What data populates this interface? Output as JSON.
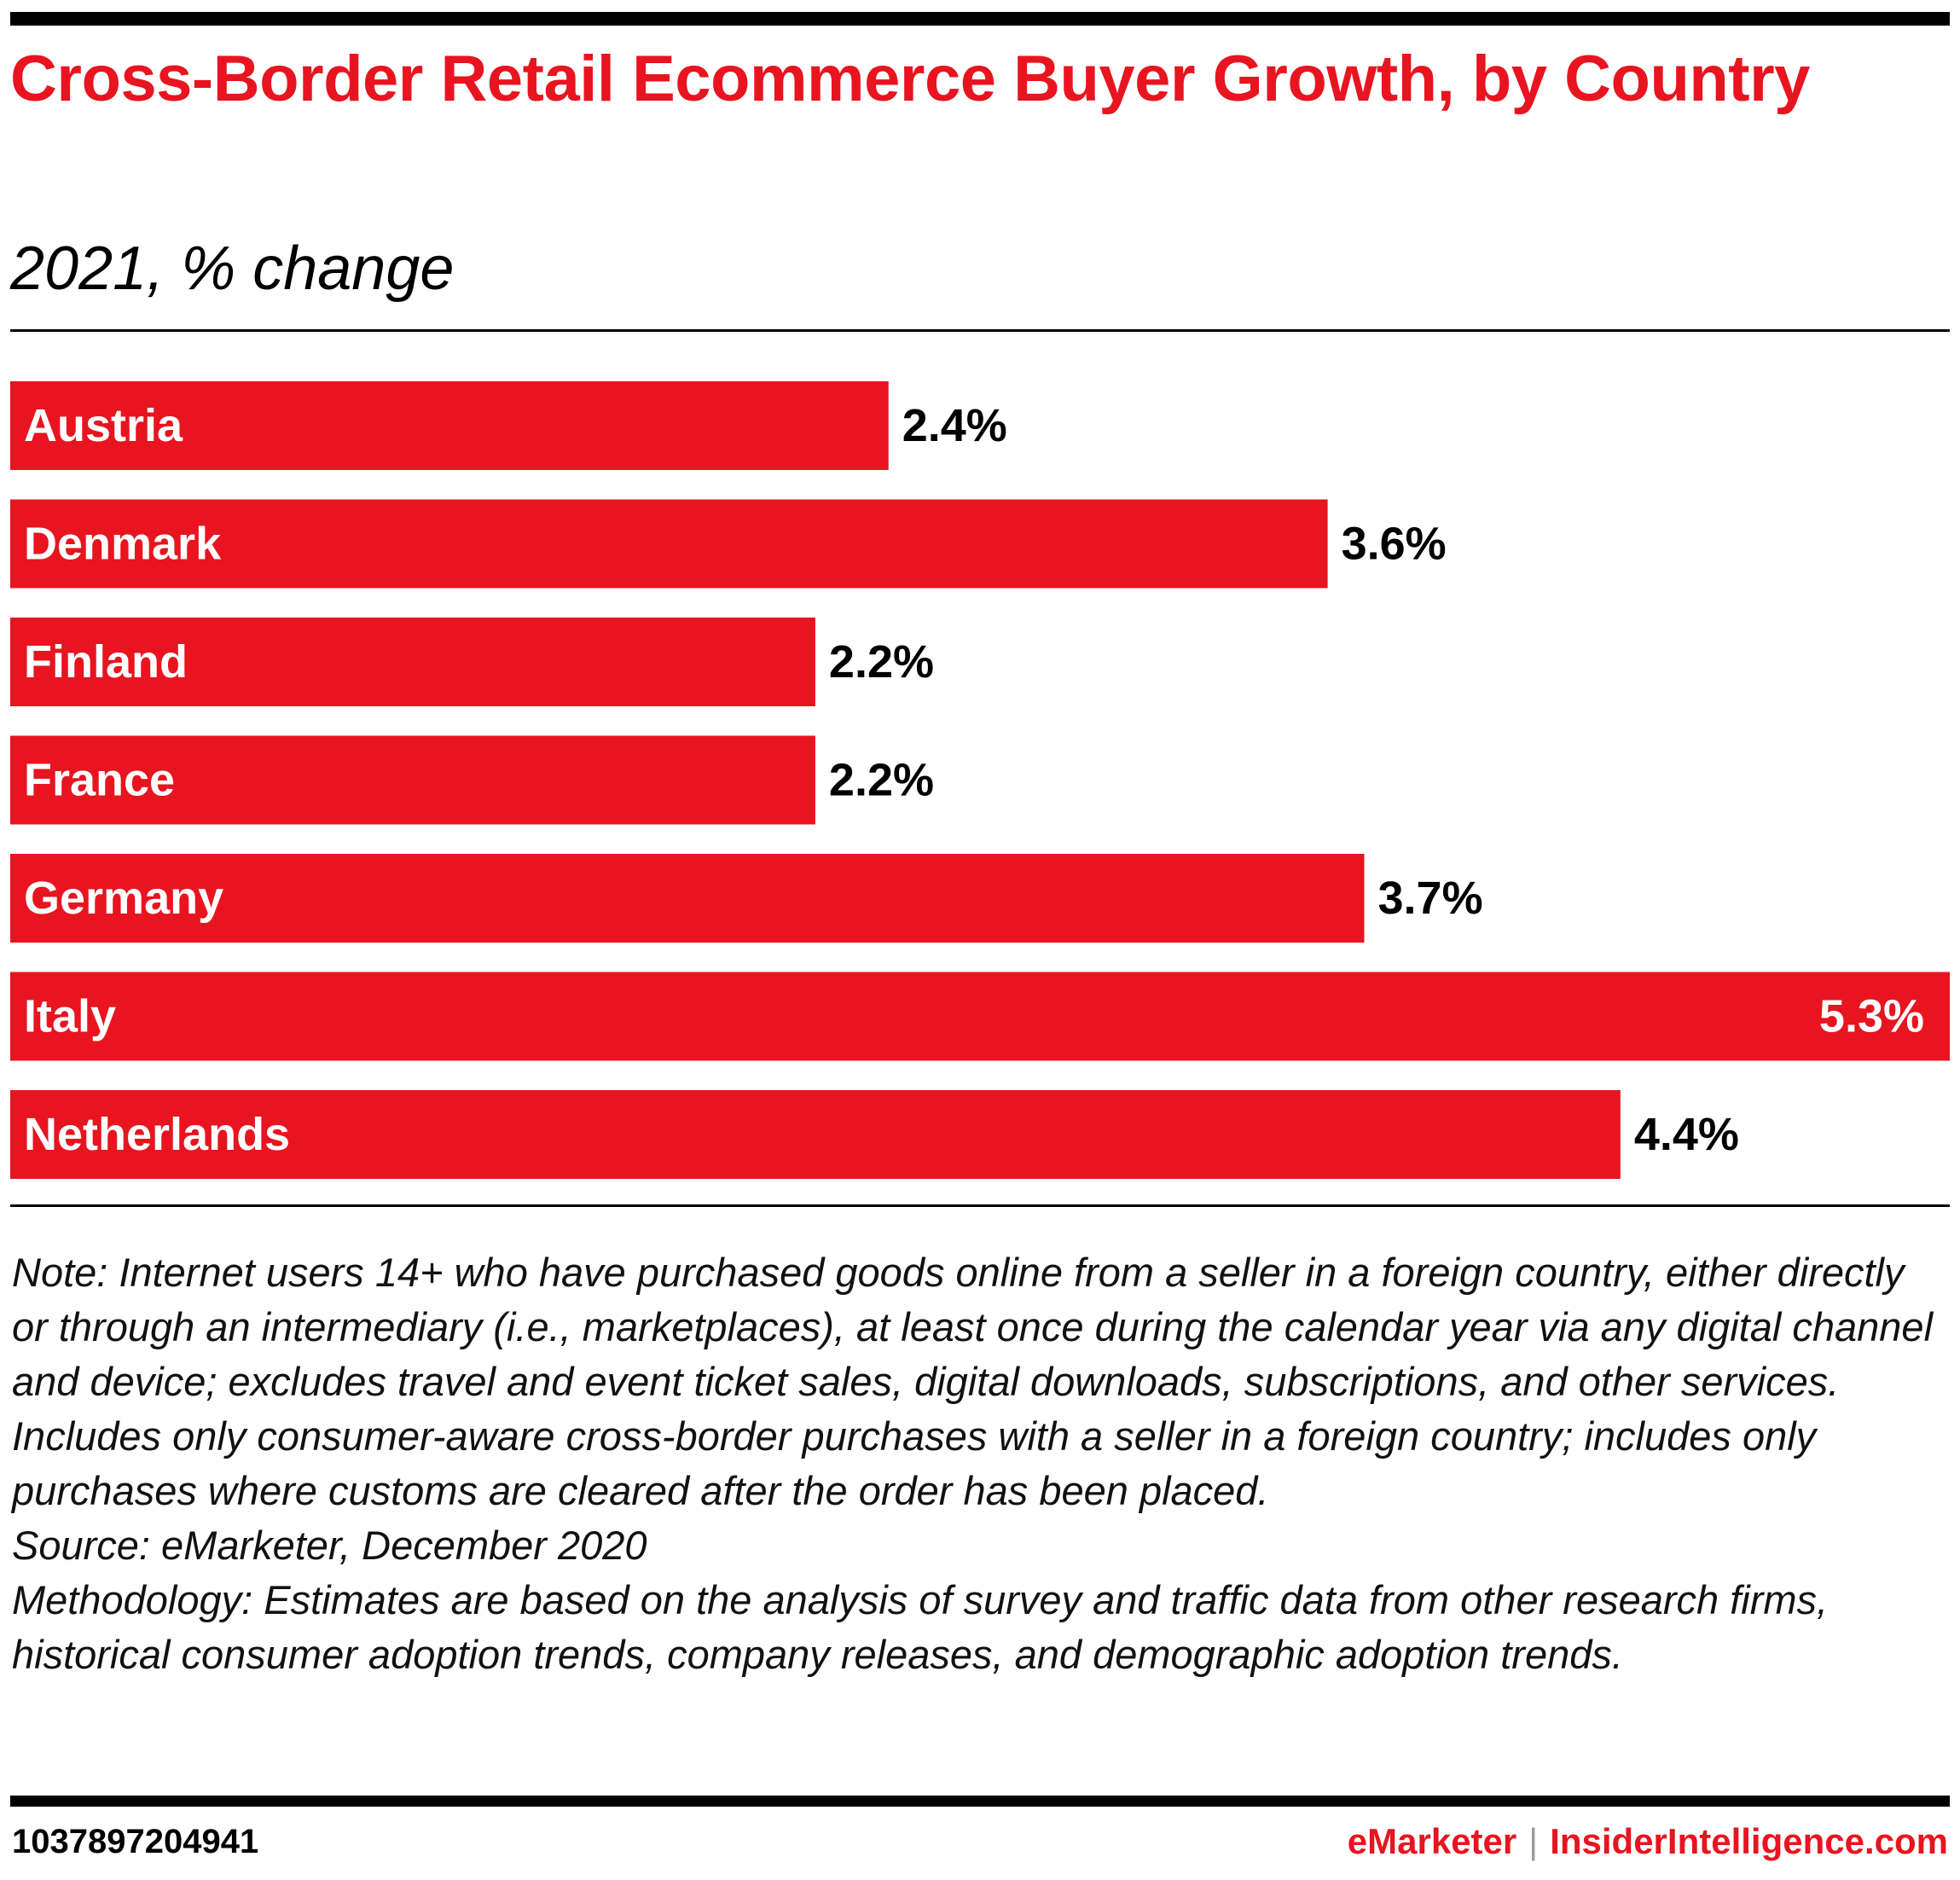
{
  "header": {
    "title": "Cross-Border Retail Ecommerce Buyer Growth, by Country",
    "subtitle": "2021, % change"
  },
  "colors": {
    "bar": "#e8141f",
    "title": "#e8141f",
    "label_on_bar": "#ffffff",
    "value_outside": "#000000"
  },
  "chart_data": {
    "type": "bar",
    "orientation": "horizontal",
    "title": "Cross-Border Retail Ecommerce Buyer Growth, by Country",
    "subtitle": "2021, % change",
    "xlabel": "",
    "ylabel": "",
    "categories": [
      "Austria",
      "Denmark",
      "Finland",
      "France",
      "Germany",
      "Italy",
      "Netherlands"
    ],
    "values": [
      2.4,
      3.6,
      2.2,
      2.2,
      3.7,
      5.3,
      4.4
    ],
    "value_labels": [
      "2.4%",
      "3.6%",
      "2.2%",
      "2.2%",
      "3.7%",
      "5.3%",
      "4.4%"
    ],
    "xlim": [
      0,
      5.3
    ],
    "grid": false,
    "legend": "none"
  },
  "notes": {
    "note": "Note: Internet users 14+ who have purchased goods online from a seller in a foreign country, either directly or through an intermediary (i.e., marketplaces), at least once during the calendar year via any digital channel and device; excludes travel and event ticket sales, digital downloads, subscriptions, and other services. Includes only consumer-aware cross-border purchases with a seller in a foreign country; includes only purchases where customs are cleared after the order has been placed.",
    "source": "Source: eMarketer, December 2020",
    "methodology": "Methodology: Estimates are based on the analysis of survey and traffic data from other research firms, historical consumer adoption trends, company releases, and demographic adoption trends."
  },
  "footer": {
    "chart_id": "1037897204941",
    "brand_emarketer": "eMarketer",
    "separator": "|",
    "brand_insider": "InsiderIntelligence.com"
  }
}
